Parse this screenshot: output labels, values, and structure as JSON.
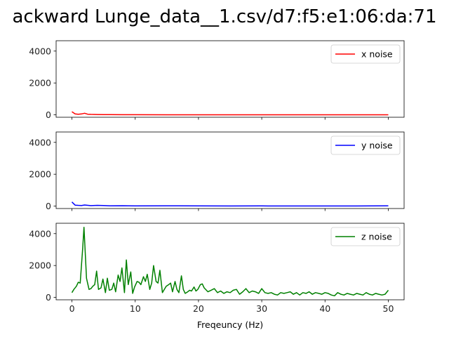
{
  "figure": {
    "title": "ackward Lunge_data__1.csv/d7:f5:e1:06:da:71"
  },
  "chart_data": [
    {
      "type": "line",
      "xlabel": "",
      "ylabel": "",
      "xlim": [
        -2.5,
        52.5
      ],
      "ylim": [
        -150,
        4650
      ],
      "xticks": [
        0,
        10,
        20,
        30,
        40,
        50
      ],
      "yticks": [
        0,
        2000,
        4000
      ],
      "ytick_labels": [
        "0",
        "2000",
        "4000"
      ],
      "xtick_labels": [],
      "legend_position": "top-right",
      "series": [
        {
          "name": "x noise",
          "color": "#ff0000",
          "x": [
            0,
            0.5,
            1,
            1.5,
            2,
            2.5,
            3,
            4,
            5,
            6,
            8,
            10,
            15,
            20,
            25,
            30,
            35,
            40,
            45,
            50
          ],
          "y": [
            200,
            60,
            40,
            55,
            100,
            40,
            30,
            20,
            15,
            12,
            10,
            8,
            6,
            5,
            5,
            4,
            4,
            4,
            3,
            3
          ]
        }
      ]
    },
    {
      "type": "line",
      "xlabel": "",
      "ylabel": "",
      "xlim": [
        -2.5,
        52.5
      ],
      "ylim": [
        -150,
        4650
      ],
      "xticks": [
        0,
        10,
        20,
        30,
        40,
        50
      ],
      "yticks": [
        0,
        2000,
        4000
      ],
      "ytick_labels": [
        "0",
        "2000",
        "4000"
      ],
      "xtick_labels": [],
      "legend_position": "top-right",
      "series": [
        {
          "name": "y noise",
          "color": "#0000ff",
          "x": [
            0,
            0.5,
            1,
            1.5,
            2,
            3,
            4,
            5,
            6,
            8,
            10,
            15,
            20,
            25,
            30,
            35,
            40,
            45,
            50
          ],
          "y": [
            260,
            60,
            50,
            40,
            70,
            30,
            50,
            35,
            20,
            25,
            15,
            20,
            12,
            10,
            15,
            10,
            8,
            10,
            20
          ]
        }
      ]
    },
    {
      "type": "line",
      "xlabel": "Freqeuncy (Hz)",
      "ylabel": "",
      "xlim": [
        -2.5,
        52.5
      ],
      "ylim": [
        -150,
        4650
      ],
      "xticks": [
        0,
        10,
        20,
        30,
        40,
        50
      ],
      "yticks": [
        0,
        2000,
        4000
      ],
      "ytick_labels": [
        "0",
        "2000",
        "4000"
      ],
      "xtick_labels": [
        "0",
        "10",
        "20",
        "30",
        "40",
        "50"
      ],
      "legend_position": "top-right",
      "series": [
        {
          "name": "z noise",
          "color": "#008000",
          "x": [
            0,
            0.3,
            0.7,
            1.0,
            1.3,
            1.7,
            1.9,
            2.3,
            2.7,
            3.0,
            3.3,
            3.6,
            3.9,
            4.2,
            4.6,
            4.9,
            5.3,
            5.6,
            5.9,
            6.3,
            6.6,
            6.9,
            7.3,
            7.6,
            7.9,
            8.3,
            8.6,
            8.9,
            9.3,
            9.6,
            9.9,
            10.3,
            10.6,
            10.9,
            11.3,
            11.6,
            11.9,
            12.3,
            12.6,
            12.9,
            13.3,
            13.6,
            13.9,
            14.3,
            14.6,
            14.9,
            15.3,
            15.6,
            15.9,
            16.3,
            16.6,
            16.9,
            17.3,
            17.6,
            17.9,
            18.3,
            18.6,
            18.9,
            19.3,
            19.6,
            19.9,
            20.3,
            20.6,
            20.9,
            21.5,
            22.0,
            22.5,
            23.0,
            23.5,
            24.0,
            24.5,
            25.0,
            25.5,
            26.0,
            26.5,
            27.0,
            27.5,
            28.0,
            28.5,
            29.0,
            29.5,
            30.0,
            30.5,
            31.0,
            31.5,
            32.0,
            32.5,
            33.0,
            33.5,
            34.0,
            34.5,
            35.0,
            35.5,
            36.0,
            36.5,
            37.0,
            37.5,
            38.0,
            38.5,
            39.0,
            39.5,
            40.0,
            40.5,
            41.0,
            41.5,
            42.0,
            42.5,
            43.0,
            43.5,
            44.0,
            44.5,
            45.0,
            45.5,
            46.0,
            46.5,
            47.0,
            47.5,
            48.0,
            48.5,
            49.0,
            49.5,
            50.0
          ],
          "y": [
            300,
            500,
            700,
            950,
            900,
            3100,
            4400,
            1200,
            500,
            550,
            700,
            800,
            1650,
            500,
            600,
            1150,
            300,
            1200,
            450,
            500,
            900,
            350,
            1400,
            1000,
            1850,
            300,
            2350,
            800,
            1600,
            250,
            650,
            1000,
            950,
            800,
            1300,
            1000,
            1450,
            500,
            900,
            2000,
            1000,
            900,
            1700,
            300,
            500,
            700,
            800,
            900,
            350,
            1000,
            500,
            300,
            1350,
            500,
            250,
            350,
            450,
            400,
            650,
            400,
            500,
            800,
            850,
            600,
            350,
            450,
            550,
            300,
            400,
            250,
            350,
            300,
            450,
            500,
            200,
            350,
            550,
            300,
            400,
            350,
            250,
            550,
            300,
            250,
            300,
            200,
            150,
            300,
            250,
            300,
            350,
            200,
            300,
            150,
            300,
            250,
            350,
            200,
            300,
            250,
            200,
            300,
            250,
            150,
            100,
            300,
            200,
            150,
            250,
            200,
            150,
            250,
            200,
            150,
            300,
            200,
            150,
            250,
            200,
            150,
            200,
            450
          ]
        }
      ]
    }
  ]
}
